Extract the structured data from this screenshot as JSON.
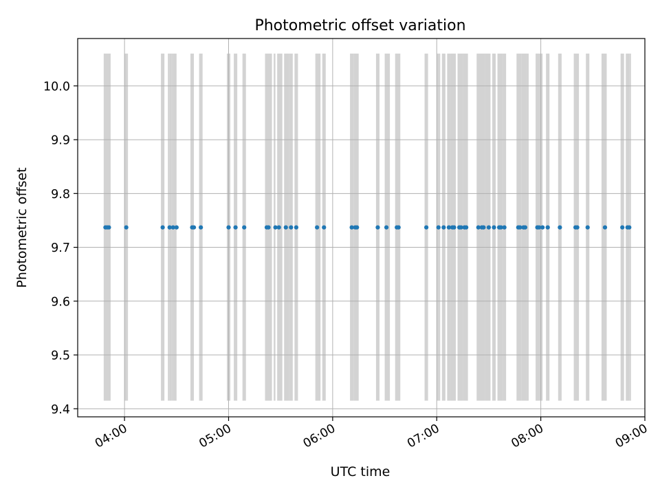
{
  "chart_data": {
    "type": "scatter",
    "title": "Photometric offset variation",
    "xlabel": "UTC time",
    "ylabel": "Photometric offset",
    "x_axis_kind": "time",
    "xlim": [
      "03:33",
      "09:00"
    ],
    "ylim": [
      9.385,
      10.088
    ],
    "y_ticks": [
      9.4,
      9.5,
      9.6,
      9.7,
      9.8,
      9.9,
      10.0
    ],
    "y_tick_labels": [
      "9.4",
      "9.5",
      "9.6",
      "9.7",
      "9.8",
      "9.9",
      "10.0"
    ],
    "x_ticks": [
      "04:00",
      "05:00",
      "06:00",
      "07:00",
      "08:00",
      "09:00"
    ],
    "x_tick_labels": [
      "04:00",
      "05:00",
      "06:00",
      "07:00",
      "08:00",
      "09:00"
    ],
    "grid": true,
    "colors": {
      "points": "#1f77b4",
      "spans": "#d3d3d3",
      "grid": "#b0b0b0",
      "axes": "#000000"
    },
    "band_y_range": [
      9.415,
      10.06
    ],
    "bands": [
      [
        "03:48",
        "03:52"
      ],
      [
        "04:00",
        "04:02"
      ],
      [
        "04:21",
        "04:23"
      ],
      [
        "04:25",
        "04:26"
      ],
      [
        "04:26",
        "04:27"
      ],
      [
        "04:27",
        "04:28"
      ],
      [
        "04:28",
        "04:30"
      ],
      [
        "04:38",
        "04:40"
      ],
      [
        "04:43",
        "04:45"
      ],
      [
        "04:59",
        "05:01"
      ],
      [
        "05:03",
        "05:05"
      ],
      [
        "05:08",
        "05:10"
      ],
      [
        "05:21",
        "05:25"
      ],
      [
        "05:26",
        "05:27"
      ],
      [
        "05:28",
        "05:31"
      ],
      [
        "05:32",
        "05:35"
      ],
      [
        "05:35",
        "05:37"
      ],
      [
        "05:38",
        "05:40"
      ],
      [
        "05:50",
        "05:53"
      ],
      [
        "05:54",
        "05:56"
      ],
      [
        "06:10",
        "06:12"
      ],
      [
        "06:12",
        "06:15"
      ],
      [
        "06:25",
        "06:27"
      ],
      [
        "06:30",
        "06:33"
      ],
      [
        "06:36",
        "06:39"
      ],
      [
        "06:53",
        "06:55"
      ],
      [
        "07:00",
        "07:02"
      ],
      [
        "07:03",
        "07:05"
      ],
      [
        "07:06",
        "07:08"
      ],
      [
        "07:08",
        "07:11"
      ],
      [
        "07:12",
        "07:15"
      ],
      [
        "07:15",
        "07:18"
      ],
      [
        "07:23",
        "07:28"
      ],
      [
        "07:28",
        "07:31"
      ],
      [
        "07:32",
        "07:34"
      ],
      [
        "07:35",
        "07:38"
      ],
      [
        "07:38",
        "07:40"
      ],
      [
        "07:46",
        "07:49"
      ],
      [
        "07:49",
        "07:52"
      ],
      [
        "07:52",
        "07:53"
      ],
      [
        "07:57",
        "08:01"
      ],
      [
        "08:03",
        "08:05"
      ],
      [
        "08:10",
        "08:12"
      ],
      [
        "08:19",
        "08:22"
      ],
      [
        "08:26",
        "08:28"
      ],
      [
        "08:35",
        "08:38"
      ],
      [
        "08:46",
        "08:48"
      ],
      [
        "08:49",
        "08:51"
      ],
      [
        "08:51",
        "08:52"
      ]
    ],
    "points": [
      {
        "x": "03:49",
        "y": 9.737
      },
      {
        "x": "03:50",
        "y": 9.737
      },
      {
        "x": "03:51",
        "y": 9.737
      },
      {
        "x": "04:01",
        "y": 9.737
      },
      {
        "x": "04:22",
        "y": 9.737
      },
      {
        "x": "04:26",
        "y": 9.737
      },
      {
        "x": "04:28",
        "y": 9.737
      },
      {
        "x": "04:30",
        "y": 9.737
      },
      {
        "x": "04:39",
        "y": 9.737
      },
      {
        "x": "04:40",
        "y": 9.737
      },
      {
        "x": "04:44",
        "y": 9.737
      },
      {
        "x": "05:00",
        "y": 9.737
      },
      {
        "x": "05:04",
        "y": 9.737
      },
      {
        "x": "05:09",
        "y": 9.737
      },
      {
        "x": "05:22",
        "y": 9.737
      },
      {
        "x": "05:23",
        "y": 9.737
      },
      {
        "x": "05:27",
        "y": 9.737
      },
      {
        "x": "05:29",
        "y": 9.737
      },
      {
        "x": "05:33",
        "y": 9.737
      },
      {
        "x": "05:36",
        "y": 9.737
      },
      {
        "x": "05:39",
        "y": 9.737
      },
      {
        "x": "05:51",
        "y": 9.737
      },
      {
        "x": "05:55",
        "y": 9.737
      },
      {
        "x": "06:11",
        "y": 9.737
      },
      {
        "x": "06:13",
        "y": 9.737
      },
      {
        "x": "06:14",
        "y": 9.737
      },
      {
        "x": "06:26",
        "y": 9.737
      },
      {
        "x": "06:31",
        "y": 9.737
      },
      {
        "x": "06:37",
        "y": 9.737
      },
      {
        "x": "06:38",
        "y": 9.737
      },
      {
        "x": "06:54",
        "y": 9.737
      },
      {
        "x": "07:01",
        "y": 9.737
      },
      {
        "x": "07:04",
        "y": 9.737
      },
      {
        "x": "07:07",
        "y": 9.737
      },
      {
        "x": "07:09",
        "y": 9.737
      },
      {
        "x": "07:10",
        "y": 9.737
      },
      {
        "x": "07:13",
        "y": 9.737
      },
      {
        "x": "07:14",
        "y": 9.737
      },
      {
        "x": "07:16",
        "y": 9.737
      },
      {
        "x": "07:17",
        "y": 9.737
      },
      {
        "x": "07:24",
        "y": 9.737
      },
      {
        "x": "07:26",
        "y": 9.737
      },
      {
        "x": "07:27",
        "y": 9.737
      },
      {
        "x": "07:30",
        "y": 9.737
      },
      {
        "x": "07:33",
        "y": 9.737
      },
      {
        "x": "07:36",
        "y": 9.737
      },
      {
        "x": "07:37",
        "y": 9.737
      },
      {
        "x": "07:39",
        "y": 9.737
      },
      {
        "x": "07:47",
        "y": 9.737
      },
      {
        "x": "07:48",
        "y": 9.737
      },
      {
        "x": "07:50",
        "y": 9.737
      },
      {
        "x": "07:51",
        "y": 9.737
      },
      {
        "x": "07:58",
        "y": 9.737
      },
      {
        "x": "07:59",
        "y": 9.737
      },
      {
        "x": "08:01",
        "y": 9.737
      },
      {
        "x": "08:04",
        "y": 9.737
      },
      {
        "x": "08:11",
        "y": 9.737
      },
      {
        "x": "08:20",
        "y": 9.737
      },
      {
        "x": "08:21",
        "y": 9.737
      },
      {
        "x": "08:27",
        "y": 9.737
      },
      {
        "x": "08:37",
        "y": 9.737
      },
      {
        "x": "08:47",
        "y": 9.737
      },
      {
        "x": "08:50",
        "y": 9.737
      },
      {
        "x": "08:51",
        "y": 9.737
      }
    ]
  }
}
